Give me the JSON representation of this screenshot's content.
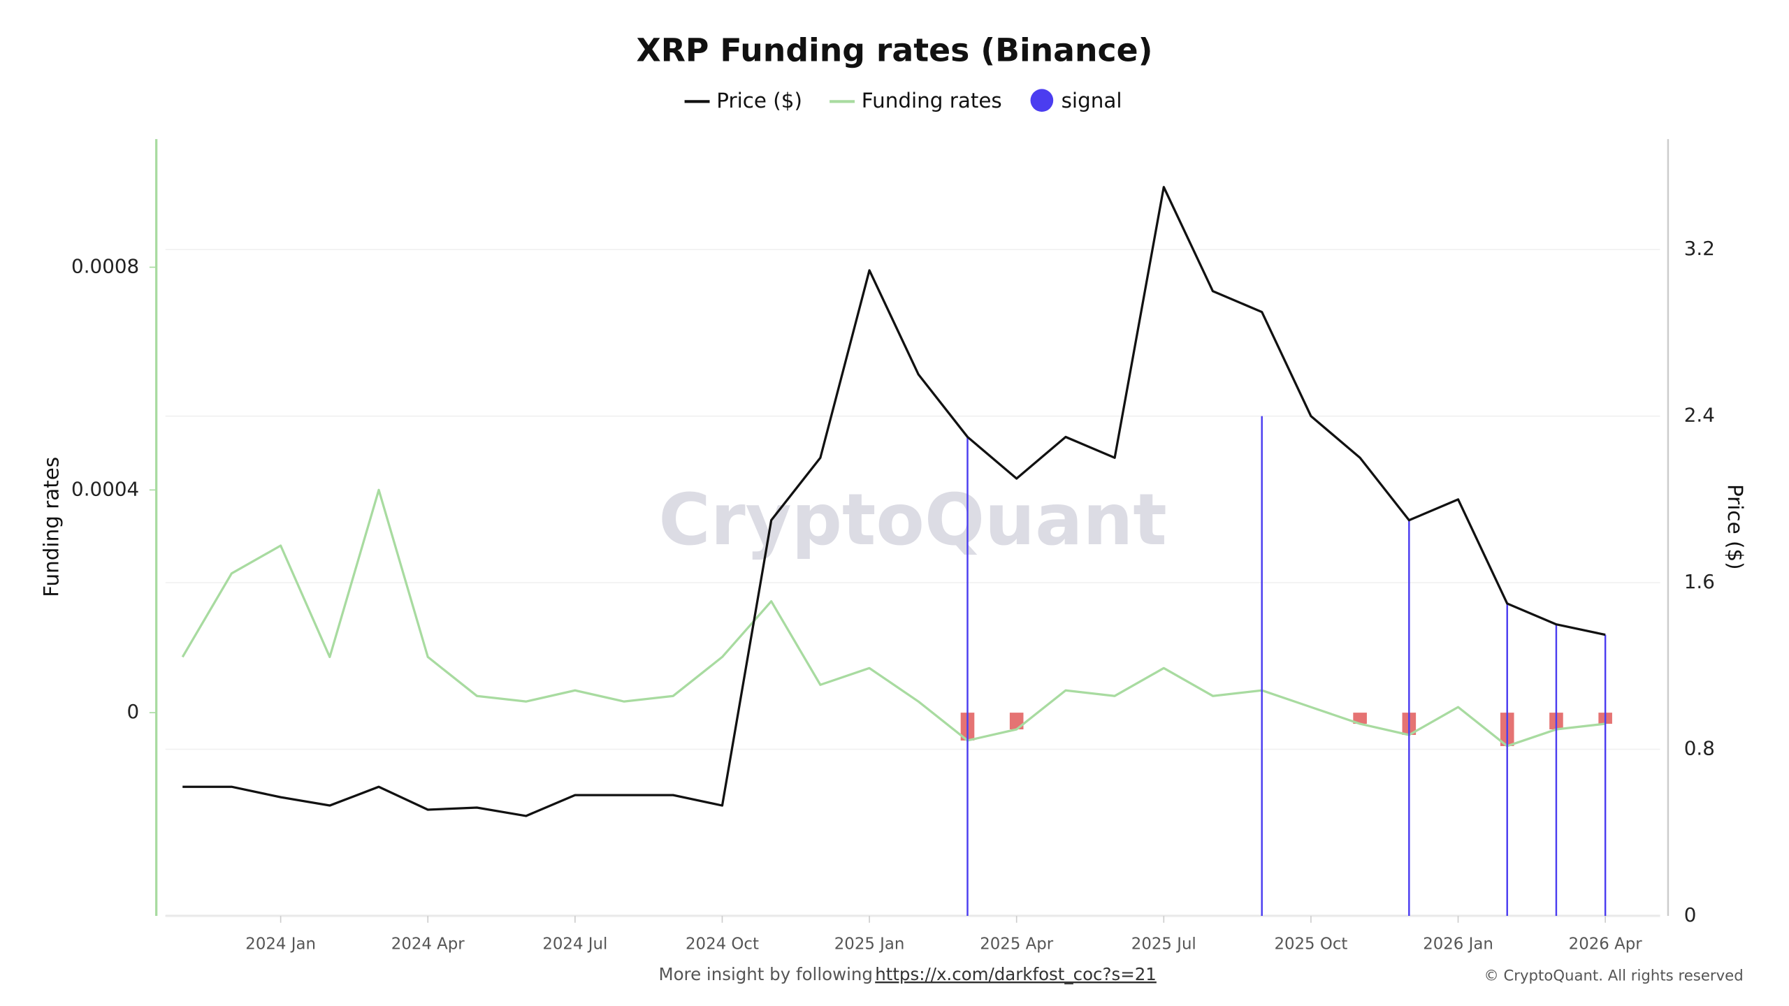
{
  "chart_data": {
    "type": "line",
    "title": "XRP Funding rates (Binance)",
    "y_label": "Funding rates",
    "y2_label": "Price ($)",
    "watermark": "CryptoQuant",
    "footer_text": "More insight by following",
    "footer_link": "https://x.com/darkfost_coc?s=21",
    "copyright": "© CryptoQuant. All rights reserved",
    "x": [
      "2023-11",
      "2023-12",
      "2024-01",
      "2024-02",
      "2024-03",
      "2024-04",
      "2024-05",
      "2024-06",
      "2024-07",
      "2024-08",
      "2024-09",
      "2024-10",
      "2024-11",
      "2024-12",
      "2025-01",
      "2025-02",
      "2025-03",
      "2025-04",
      "2025-05",
      "2025-06",
      "2025-07",
      "2025-08",
      "2025-09",
      "2025-10",
      "2025-11",
      "2025-12",
      "2026-01",
      "2026-02",
      "2026-03",
      "2026-04"
    ],
    "xticks": [
      {
        "value": "2024-01",
        "label": "2024 Jan"
      },
      {
        "value": "2024-04",
        "label": "2024 Apr"
      },
      {
        "value": "2024-07",
        "label": "2024 Jul"
      },
      {
        "value": "2024-10",
        "label": "2024 Oct"
      },
      {
        "value": "2025-01",
        "label": "2025 Jan"
      },
      {
        "value": "2025-04",
        "label": "2025 Apr"
      },
      {
        "value": "2025-07",
        "label": "2025 Jul"
      },
      {
        "value": "2025-10",
        "label": "2025 Oct"
      },
      {
        "value": "2026-01",
        "label": "2026 Jan"
      },
      {
        "value": "2026-04",
        "label": "2026 Apr"
      }
    ],
    "ylim": [
      -0.000365,
      0.00103
    ],
    "yticks": [
      0,
      0.0004,
      0.0008
    ],
    "y2lim": [
      0,
      3.73
    ],
    "y2ticks": [
      0,
      0.8,
      1.6,
      2.4,
      3.2
    ],
    "grid": true,
    "legend": "top",
    "series": [
      {
        "name": "Price ($)",
        "color": "#111111",
        "axis": "y2",
        "mark": "line",
        "values": [
          0.62,
          0.62,
          0.57,
          0.53,
          0.62,
          0.51,
          0.52,
          0.48,
          0.58,
          0.58,
          0.58,
          0.53,
          1.9,
          2.2,
          3.1,
          2.6,
          2.3,
          2.1,
          2.3,
          2.2,
          3.5,
          3.0,
          2.9,
          2.4,
          2.2,
          1.9,
          2.0,
          1.5,
          1.4,
          1.35
        ]
      },
      {
        "name": "Funding rates",
        "color": "#a8dba0",
        "negative_color": "#e05a5a",
        "mark": "line",
        "values": [
          0.0001,
          0.00025,
          0.0003,
          0.0001,
          0.0004,
          0.0001,
          3e-05,
          2e-05,
          4e-05,
          2e-05,
          3e-05,
          0.0001,
          0.0002,
          5e-05,
          8e-05,
          2e-05,
          -5e-05,
          -3e-05,
          4e-05,
          3e-05,
          8e-05,
          3e-05,
          4e-05,
          1e-05,
          -2e-05,
          -4e-05,
          1e-05,
          -6e-05,
          -3e-05,
          -2e-05
        ]
      },
      {
        "name": "signal",
        "color": "#4b3df0",
        "axis": "y2",
        "mark": "rule",
        "values": [
          null,
          null,
          null,
          null,
          null,
          null,
          null,
          null,
          null,
          null,
          null,
          null,
          null,
          null,
          null,
          null,
          2.3,
          null,
          null,
          null,
          null,
          null,
          2.4,
          null,
          null,
          1.9,
          null,
          1.5,
          1.4,
          1.35
        ]
      }
    ]
  }
}
